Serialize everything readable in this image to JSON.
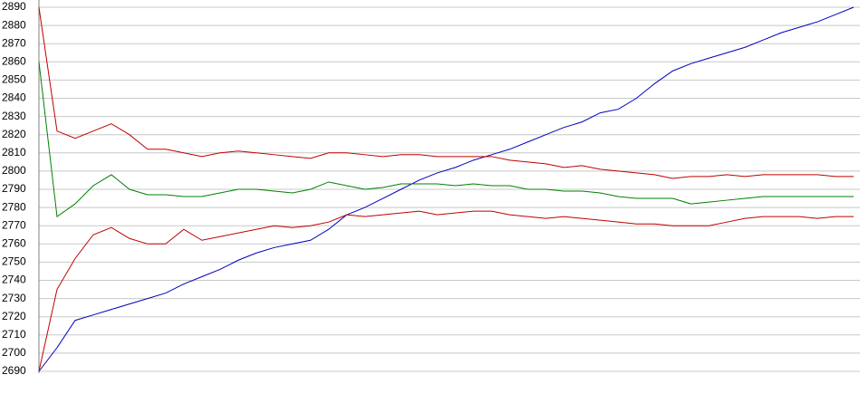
{
  "chart_data": {
    "type": "line",
    "ylim": [
      2690,
      2890
    ],
    "yticks": [
      2690,
      2700,
      2710,
      2720,
      2730,
      2740,
      2750,
      2760,
      2770,
      2780,
      2790,
      2800,
      2810,
      2820,
      2830,
      2840,
      2850,
      2860,
      2870,
      2880,
      2890
    ],
    "grid": true,
    "series": [
      {
        "color": "#0000c0",
        "values": [
          2690,
          2703,
          2718,
          2721,
          2724,
          2727,
          2730,
          2733,
          2738,
          2742,
          2746,
          2751,
          2755,
          2758,
          2760,
          2762,
          2768,
          2776,
          2780,
          2785,
          2790,
          2795,
          2799,
          2802,
          2806,
          2809,
          2812,
          2816,
          2820,
          2824,
          2827,
          2832,
          2834,
          2840,
          2848,
          2855,
          2859,
          2862,
          2865,
          2868,
          2872,
          2876,
          2879,
          2882,
          2886,
          2890
        ]
      },
      {
        "color": "#c00000",
        "values": [
          2890,
          2822,
          2818,
          2822,
          2826,
          2820,
          2812,
          2812,
          2810,
          2808,
          2810,
          2811,
          2810,
          2809,
          2808,
          2807,
          2810,
          2810,
          2809,
          2808,
          2809,
          2809,
          2808,
          2808,
          2808,
          2808,
          2806,
          2805,
          2804,
          2802,
          2803,
          2801,
          2800,
          2799,
          2798,
          2796,
          2797,
          2797,
          2798,
          2797,
          2798,
          2798,
          2798,
          2798,
          2797,
          2797
        ]
      },
      {
        "color": "#008000",
        "values": [
          2860,
          2775,
          2782,
          2792,
          2798,
          2790,
          2787,
          2787,
          2786,
          2786,
          2788,
          2790,
          2790,
          2789,
          2788,
          2790,
          2794,
          2792,
          2790,
          2791,
          2793,
          2793,
          2793,
          2792,
          2793,
          2792,
          2792,
          2790,
          2790,
          2789,
          2789,
          2788,
          2786,
          2785,
          2785,
          2785,
          2782,
          2783,
          2784,
          2785,
          2786,
          2786,
          2786,
          2786,
          2786,
          2786
        ]
      },
      {
        "color": "#c00000",
        "values": [
          2690,
          2735,
          2752,
          2765,
          2769,
          2763,
          2760,
          2760,
          2768,
          2762,
          2764,
          2766,
          2768,
          2770,
          2769,
          2770,
          2772,
          2776,
          2775,
          2776,
          2777,
          2778,
          2776,
          2777,
          2778,
          2778,
          2776,
          2775,
          2774,
          2775,
          2774,
          2773,
          2772,
          2771,
          2771,
          2770,
          2770,
          2770,
          2772,
          2774,
          2775,
          2775,
          2775,
          2774,
          2775,
          2775
        ]
      }
    ]
  }
}
